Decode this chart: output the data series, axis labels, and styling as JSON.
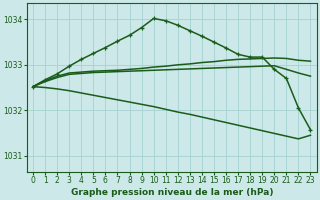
{
  "title": "Graphe pression niveau de la mer (hPa)",
  "background_color": "#cce8e8",
  "grid_color": "#aad4d4",
  "line_color": "#1a5c1a",
  "xlim": [
    -0.5,
    23.5
  ],
  "ylim": [
    1030.65,
    1034.35
  ],
  "yticks": [
    1031,
    1032,
    1033,
    1034
  ],
  "xticks": [
    0,
    1,
    2,
    3,
    4,
    5,
    6,
    7,
    8,
    9,
    10,
    11,
    12,
    13,
    14,
    15,
    16,
    17,
    18,
    19,
    20,
    21,
    22,
    23
  ],
  "x": [
    0,
    1,
    2,
    3,
    4,
    5,
    6,
    7,
    8,
    9,
    10,
    11,
    12,
    13,
    14,
    15,
    16,
    17,
    18,
    19,
    20,
    21,
    22,
    23
  ],
  "y_peak": [
    1032.52,
    1032.67,
    1032.8,
    1032.97,
    1033.12,
    1033.25,
    1033.38,
    1033.52,
    1033.65,
    1033.82,
    1034.02,
    1033.97,
    1033.87,
    1033.75,
    1033.63,
    1033.5,
    1033.37,
    1033.23,
    1033.17,
    1033.17,
    1032.9,
    1032.7,
    1032.05,
    1031.57
  ],
  "y_flat_up": [
    1032.52,
    1032.65,
    1032.75,
    1032.82,
    1032.84,
    1032.86,
    1032.87,
    1032.88,
    1032.9,
    1032.92,
    1032.95,
    1032.97,
    1033.0,
    1033.02,
    1033.05,
    1033.07,
    1033.1,
    1033.12,
    1033.13,
    1033.14,
    1033.15,
    1033.14,
    1033.1,
    1033.08
  ],
  "y_flat_low": [
    1032.52,
    1032.63,
    1032.72,
    1032.79,
    1032.81,
    1032.83,
    1032.84,
    1032.85,
    1032.86,
    1032.87,
    1032.88,
    1032.89,
    1032.9,
    1032.91,
    1032.92,
    1032.93,
    1032.94,
    1032.95,
    1032.96,
    1032.97,
    1032.98,
    1032.9,
    1032.82,
    1032.75
  ],
  "y_diag": [
    1032.52,
    1032.5,
    1032.47,
    1032.43,
    1032.38,
    1032.33,
    1032.28,
    1032.23,
    1032.18,
    1032.13,
    1032.08,
    1032.02,
    1031.96,
    1031.91,
    1031.85,
    1031.79,
    1031.73,
    1031.67,
    1031.61,
    1031.55,
    1031.49,
    1031.43,
    1031.37,
    1031.45
  ],
  "ylabel_fontsize": 6.0,
  "xlabel_fontsize": 6.5,
  "tick_labelsize": 5.5
}
